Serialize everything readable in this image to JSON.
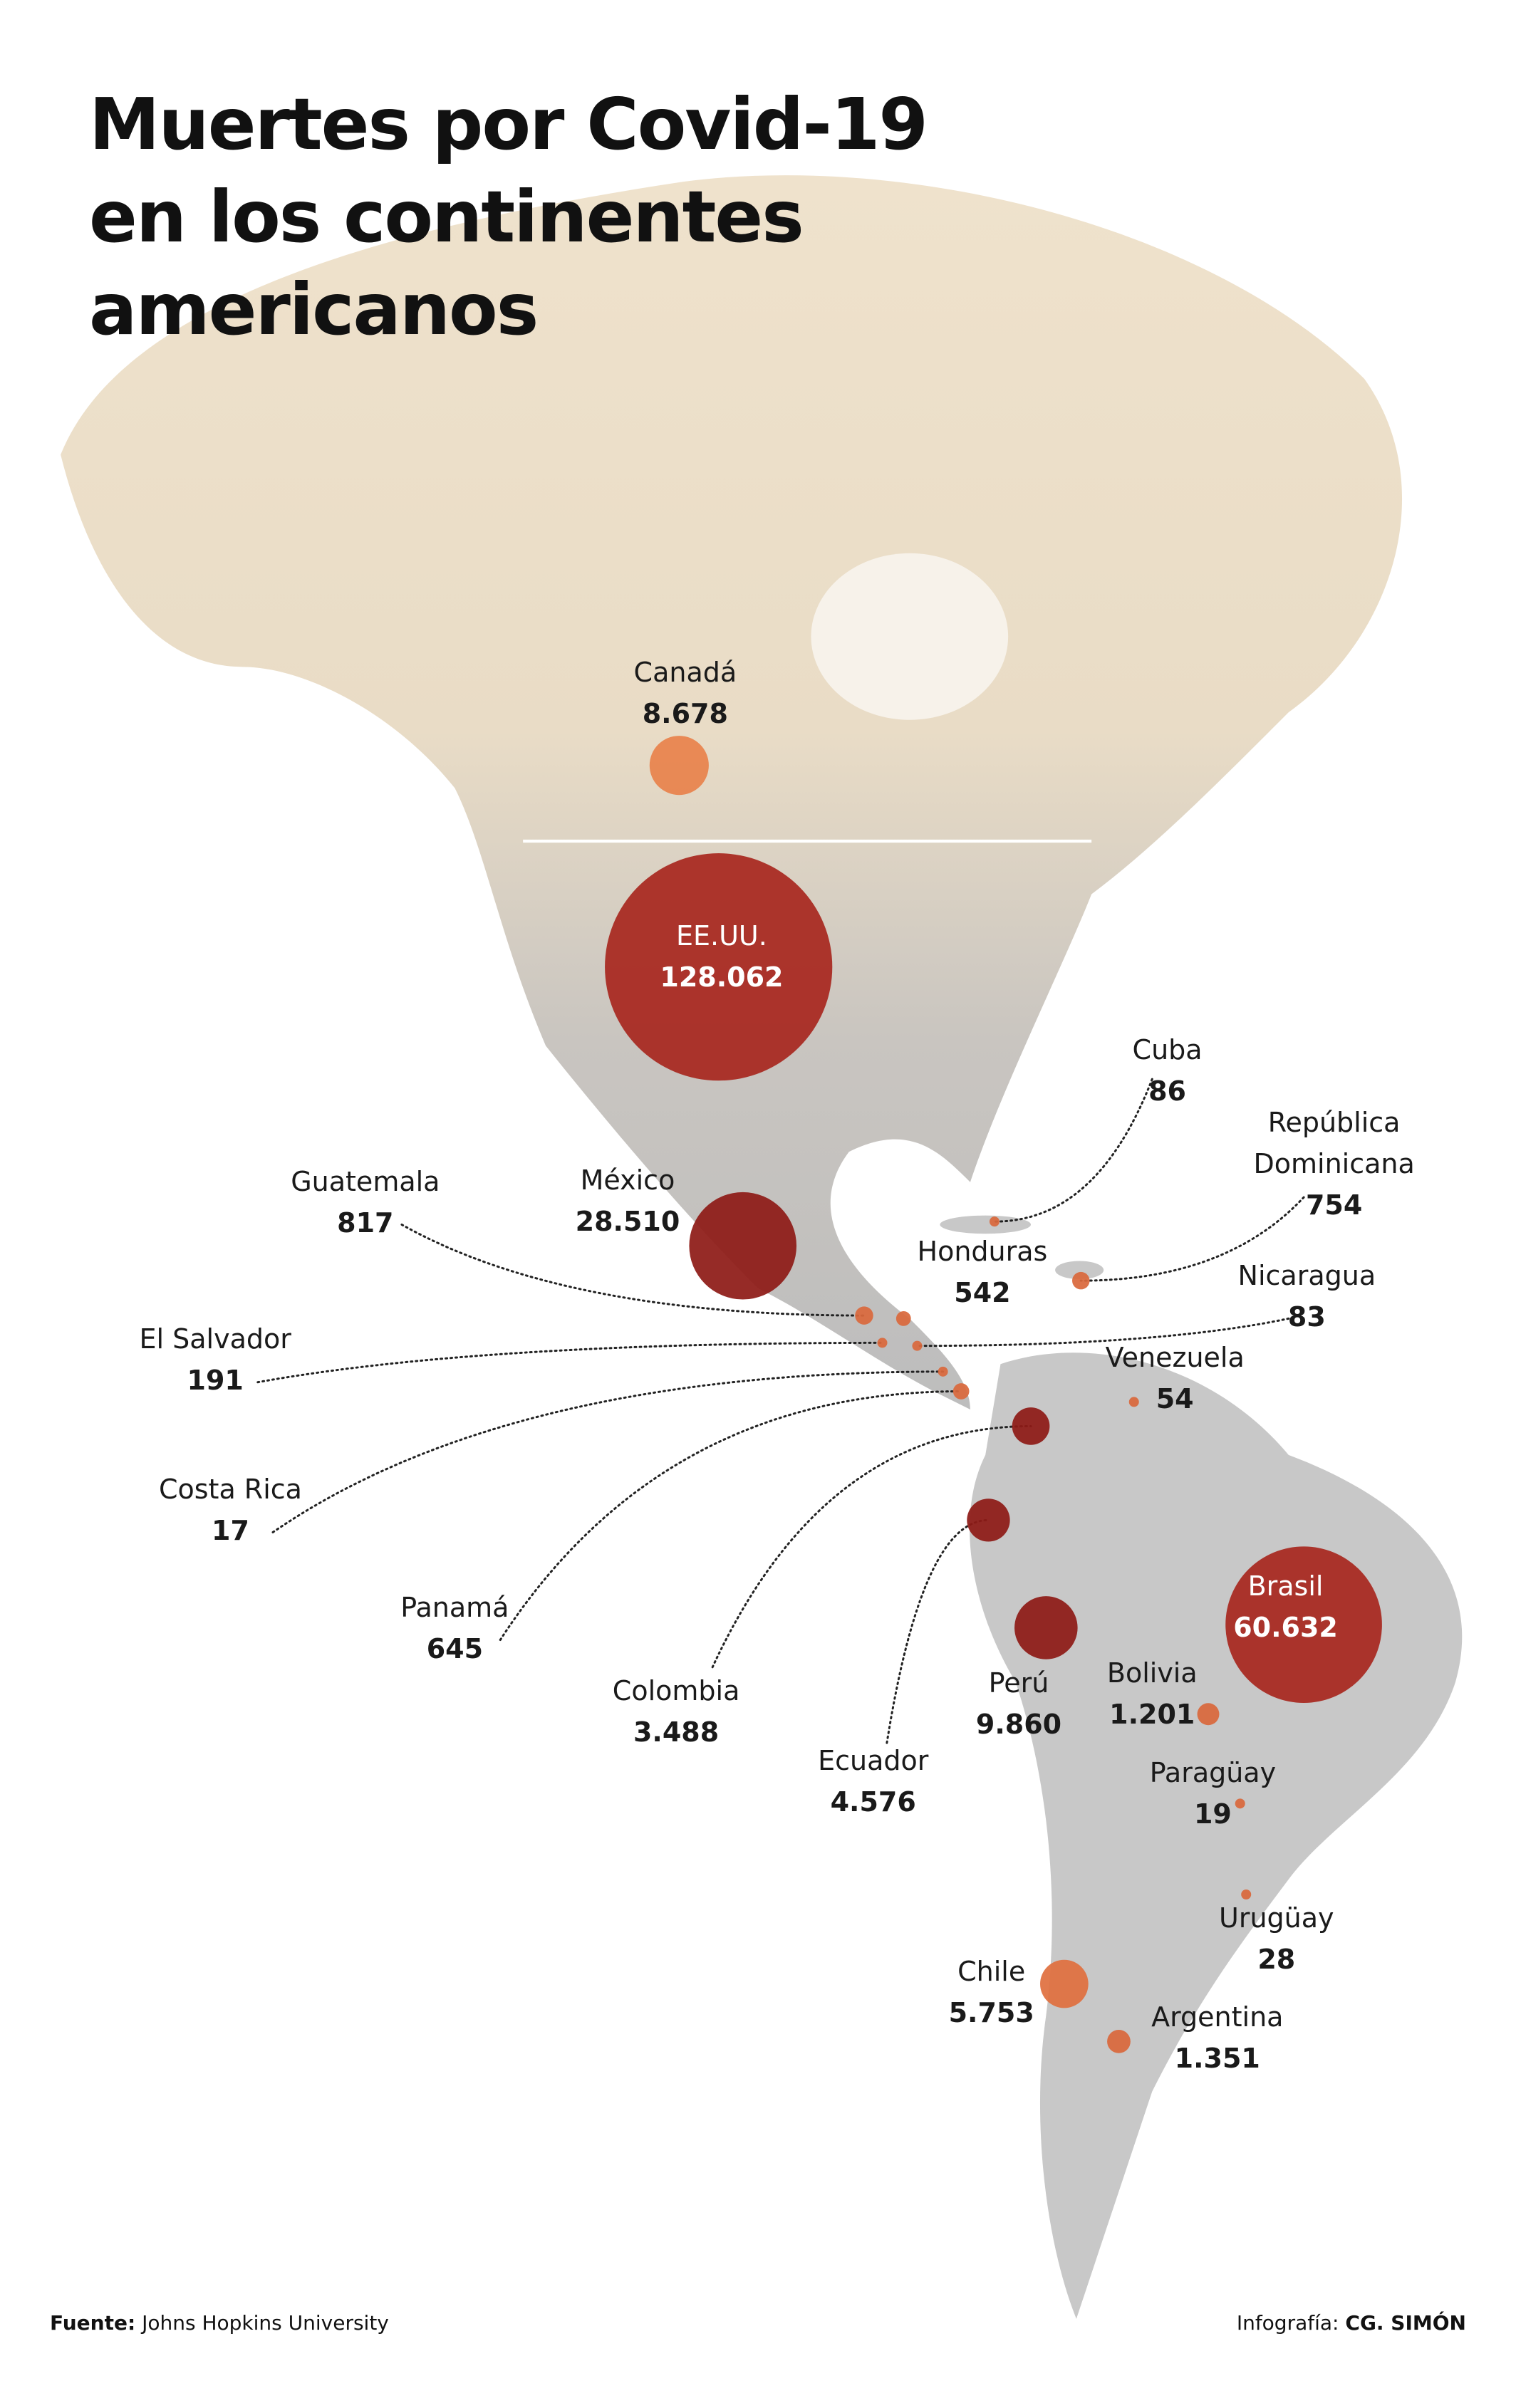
{
  "title": "Muertes por Covid-19 en los continentes americanos",
  "countries": [
    {
      "name": "Canadá",
      "deaths": 8678,
      "label": "8.678",
      "color": "#e8824c"
    },
    {
      "name": "EE.UU.",
      "deaths": 128062,
      "label": "128.062",
      "color": "#a8281f"
    },
    {
      "name": "México",
      "deaths": 28510,
      "label": "28.510",
      "color": "#8e1b17"
    },
    {
      "name": "Guatemala",
      "deaths": 817,
      "label": "817",
      "color": "#d9683c"
    },
    {
      "name": "Honduras",
      "deaths": 542,
      "label": "542",
      "color": "#d9683c"
    },
    {
      "name": "El Salvador",
      "deaths": 191,
      "label": "191",
      "color": "#d9683c"
    },
    {
      "name": "Nicaragua",
      "deaths": 83,
      "label": "83",
      "color": "#d9683c"
    },
    {
      "name": "Costa Rica",
      "deaths": 17,
      "label": "17",
      "color": "#d9683c"
    },
    {
      "name": "Panamá",
      "deaths": 645,
      "label": "645",
      "color": "#d9683c"
    },
    {
      "name": "Colombia",
      "deaths": 3488,
      "label": "3.488",
      "color": "#8e1b17"
    },
    {
      "name": "Ecuador",
      "deaths": 4576,
      "label": "4.576",
      "color": "#8e1b17"
    },
    {
      "name": "Perú",
      "deaths": 9860,
      "label": "9.860",
      "color": "#8e1b17"
    },
    {
      "name": "Venezuela",
      "deaths": 54,
      "label": "54",
      "color": "#d9683c"
    },
    {
      "name": "Cuba",
      "deaths": 86,
      "label": "86",
      "color": "#d9683c"
    },
    {
      "name": "República Dominicana",
      "deaths": 754,
      "label": "754",
      "color": "#d9683c"
    },
    {
      "name": "Brasil",
      "deaths": 60632,
      "label": "60.632",
      "color": "#a8281f"
    },
    {
      "name": "Bolivia",
      "deaths": 1201,
      "label": "1.201",
      "color": "#d9683c"
    },
    {
      "name": "Paragüay",
      "deaths": 19,
      "label": "19",
      "color": "#d9683c"
    },
    {
      "name": "Urugüay",
      "deaths": 28,
      "label": "28",
      "color": "#d9683c"
    },
    {
      "name": "Chile",
      "deaths": 5753,
      "label": "5.753",
      "color": "#e07040"
    },
    {
      "name": "Argentina",
      "deaths": 1351,
      "label": "1.351",
      "color": "#d9683c"
    }
  ],
  "footer": {
    "source_label": "Fuente:",
    "source": "Johns Hopkins University",
    "credit_label": "Infografía:",
    "credit": "CG. SIMÓN"
  }
}
